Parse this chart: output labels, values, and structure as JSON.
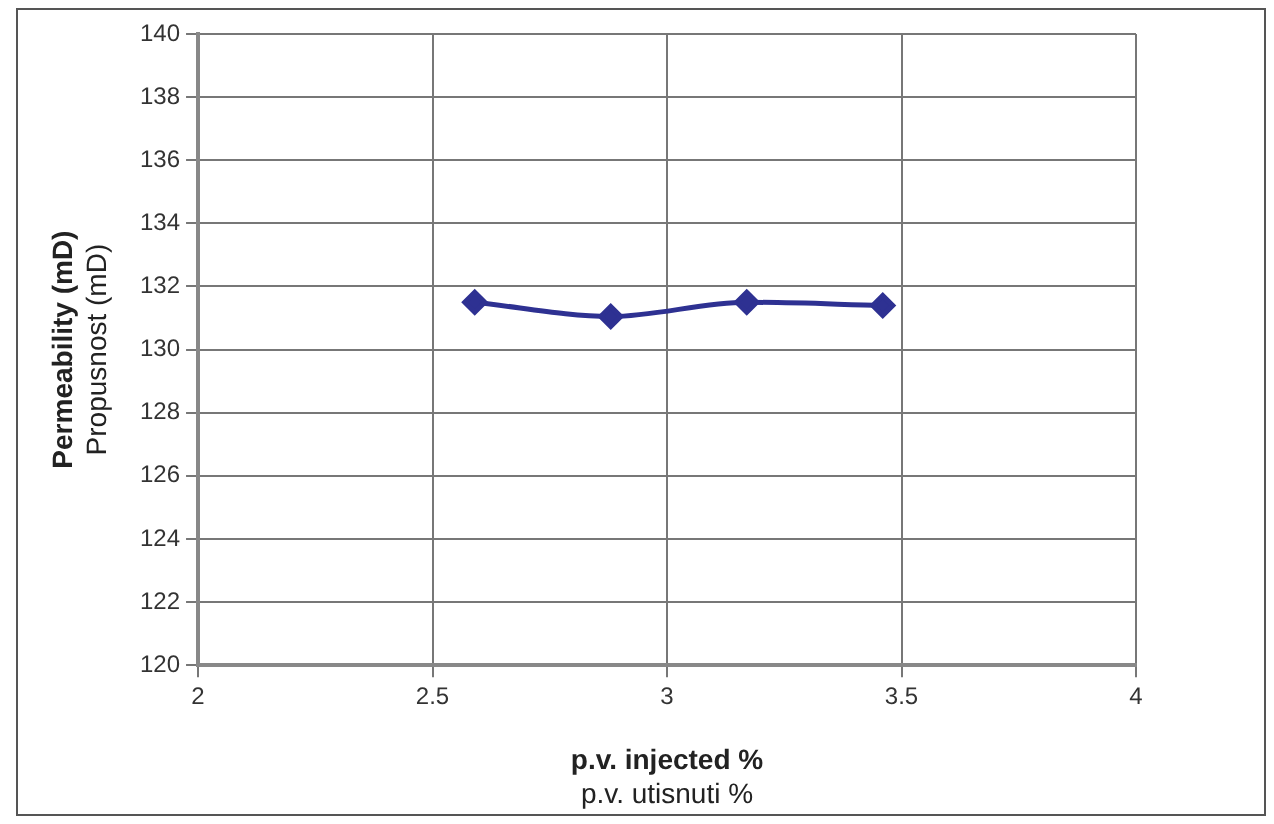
{
  "chart_data": {
    "type": "line",
    "xlabel": "p.v. injected %\np.v. utisnuti %",
    "ylabel": "Permeability (mD)\nPropusnost (mD)",
    "x": [
      2.59,
      2.88,
      3.17,
      3.46
    ],
    "series": [
      {
        "color": "#2e3192",
        "values": [
          131.5,
          131.05,
          131.5,
          131.4
        ]
      }
    ],
    "xlim": [
      2,
      4
    ],
    "xticks": [
      2,
      2.5,
      3,
      3.5,
      4
    ],
    "ylim": [
      120,
      140
    ],
    "yticks": [
      120,
      122,
      124,
      126,
      128,
      130,
      132,
      134,
      136,
      138,
      140
    ],
    "grid": true,
    "legend": false,
    "marker": "diamond",
    "line_style": "solid"
  }
}
